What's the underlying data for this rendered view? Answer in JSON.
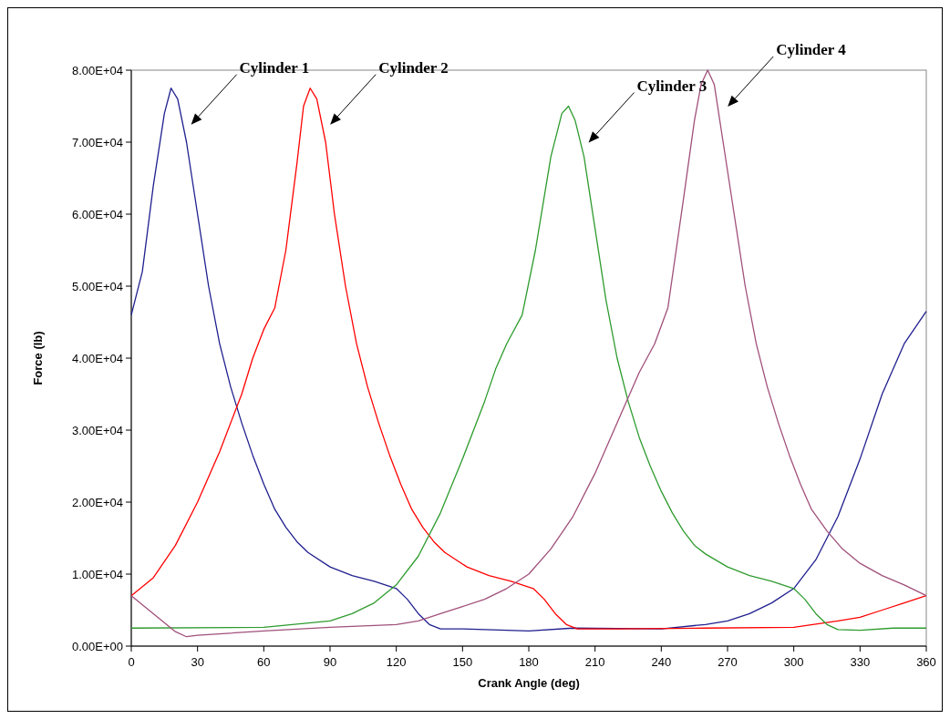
{
  "chart_data": {
    "type": "line",
    "xlabel": "Crank Angle (deg)",
    "ylabel": "Force (lb)",
    "xlim": [
      0,
      360
    ],
    "xticks": [
      0,
      30,
      60,
      90,
      120,
      150,
      180,
      210,
      240,
      270,
      300,
      330,
      360
    ],
    "ylim": [
      0,
      80000
    ],
    "yticks": [
      {
        "value": 0,
        "label": "0.00E+00"
      },
      {
        "value": 10000,
        "label": "1.00E+04"
      },
      {
        "value": 20000,
        "label": "2.00E+04"
      },
      {
        "value": 30000,
        "label": "3.00E+04"
      },
      {
        "value": 40000,
        "label": "4.00E+04"
      },
      {
        "value": 50000,
        "label": "5.00E+04"
      },
      {
        "value": 60000,
        "label": "6.00E+04"
      },
      {
        "value": 70000,
        "label": "7.00E+04"
      },
      {
        "value": 80000,
        "label": "8.00E+04"
      }
    ],
    "grid": false,
    "marker": "none",
    "line_style": "solid",
    "series": [
      {
        "color": "#1f1f8f",
        "x": [
          0,
          5,
          10,
          15,
          18,
          21,
          25,
          30,
          35,
          40,
          45,
          50,
          55,
          60,
          65,
          70,
          75,
          80,
          90,
          100,
          110,
          120,
          125,
          130,
          135,
          140,
          150,
          180,
          200,
          240,
          260,
          270,
          280,
          290,
          300,
          310,
          320,
          330,
          340,
          350,
          360
        ],
        "values": [
          46000,
          52000,
          64000,
          74000,
          77500,
          76000,
          70000,
          60000,
          50000,
          42000,
          36000,
          31000,
          26500,
          22500,
          19000,
          16500,
          14500,
          13000,
          11000,
          9800,
          9000,
          8000,
          6500,
          4500,
          3000,
          2400,
          2400,
          2100,
          2500,
          2400,
          3000,
          3500,
          4500,
          6000,
          8000,
          12000,
          18000,
          26000,
          35000,
          42000,
          46500
        ]
      },
      {
        "color": "#ff0000",
        "x": [
          0,
          10,
          20,
          30,
          40,
          50,
          55,
          60,
          65,
          70,
          75,
          78,
          81,
          84,
          88,
          92,
          97,
          102,
          107,
          112,
          117,
          122,
          127,
          132,
          137,
          142,
          152,
          162,
          172,
          182,
          187,
          192,
          197,
          202,
          220,
          260,
          300,
          320,
          330,
          340,
          350,
          360
        ],
        "values": [
          7000,
          9500,
          14000,
          20000,
          27000,
          35000,
          40000,
          44000,
          47000,
          55000,
          67000,
          75000,
          77500,
          76000,
          70000,
          60000,
          50000,
          42000,
          36000,
          31000,
          26500,
          22500,
          19000,
          16500,
          14500,
          13000,
          11000,
          9800,
          9000,
          8000,
          6500,
          4500,
          3000,
          2400,
          2400,
          2500,
          2600,
          3500,
          4000,
          5000,
          6000,
          7000
        ]
      },
      {
        "color": "#2e9b2e",
        "x": [
          0,
          60,
          90,
          100,
          110,
          120,
          130,
          140,
          150,
          160,
          165,
          170,
          177,
          183,
          190,
          195,
          198,
          201,
          205,
          210,
          215,
          220,
          225,
          230,
          235,
          240,
          245,
          250,
          255,
          260,
          270,
          280,
          290,
          300,
          305,
          310,
          315,
          320,
          330,
          345,
          360
        ],
        "values": [
          2500,
          2600,
          3500,
          4500,
          6000,
          8500,
          12500,
          18500,
          26000,
          34000,
          38500,
          42000,
          46000,
          55000,
          68000,
          74000,
          75000,
          73000,
          68000,
          58000,
          48000,
          40000,
          34000,
          29000,
          25000,
          21500,
          18500,
          16000,
          14000,
          12800,
          11000,
          9800,
          9000,
          8000,
          6500,
          4500,
          3000,
          2300,
          2200,
          2500,
          2500
        ]
      },
      {
        "color": "#a0507a",
        "x": [
          0,
          10,
          20,
          25,
          30,
          60,
          90,
          120,
          130,
          140,
          150,
          160,
          170,
          180,
          190,
          200,
          210,
          220,
          230,
          237,
          243,
          250,
          255,
          258,
          261,
          264,
          268,
          273,
          278,
          283,
          288,
          293,
          298,
          303,
          308,
          315,
          322,
          330,
          340,
          350,
          360
        ],
        "values": [
          7000,
          4500,
          2000,
          1300,
          1500,
          2100,
          2600,
          3000,
          3500,
          4500,
          5500,
          6500,
          8000,
          10000,
          13500,
          18000,
          24000,
          31000,
          38000,
          42000,
          47000,
          62000,
          73000,
          78000,
          80000,
          78000,
          70000,
          60000,
          50000,
          42000,
          36000,
          31000,
          26500,
          22500,
          19000,
          16000,
          13500,
          11500,
          9800,
          8500,
          7000
        ]
      }
    ],
    "annotations": [
      "Cylinder 1",
      "Cylinder 2",
      "Cylinder 3",
      "Cylinder 4"
    ]
  }
}
